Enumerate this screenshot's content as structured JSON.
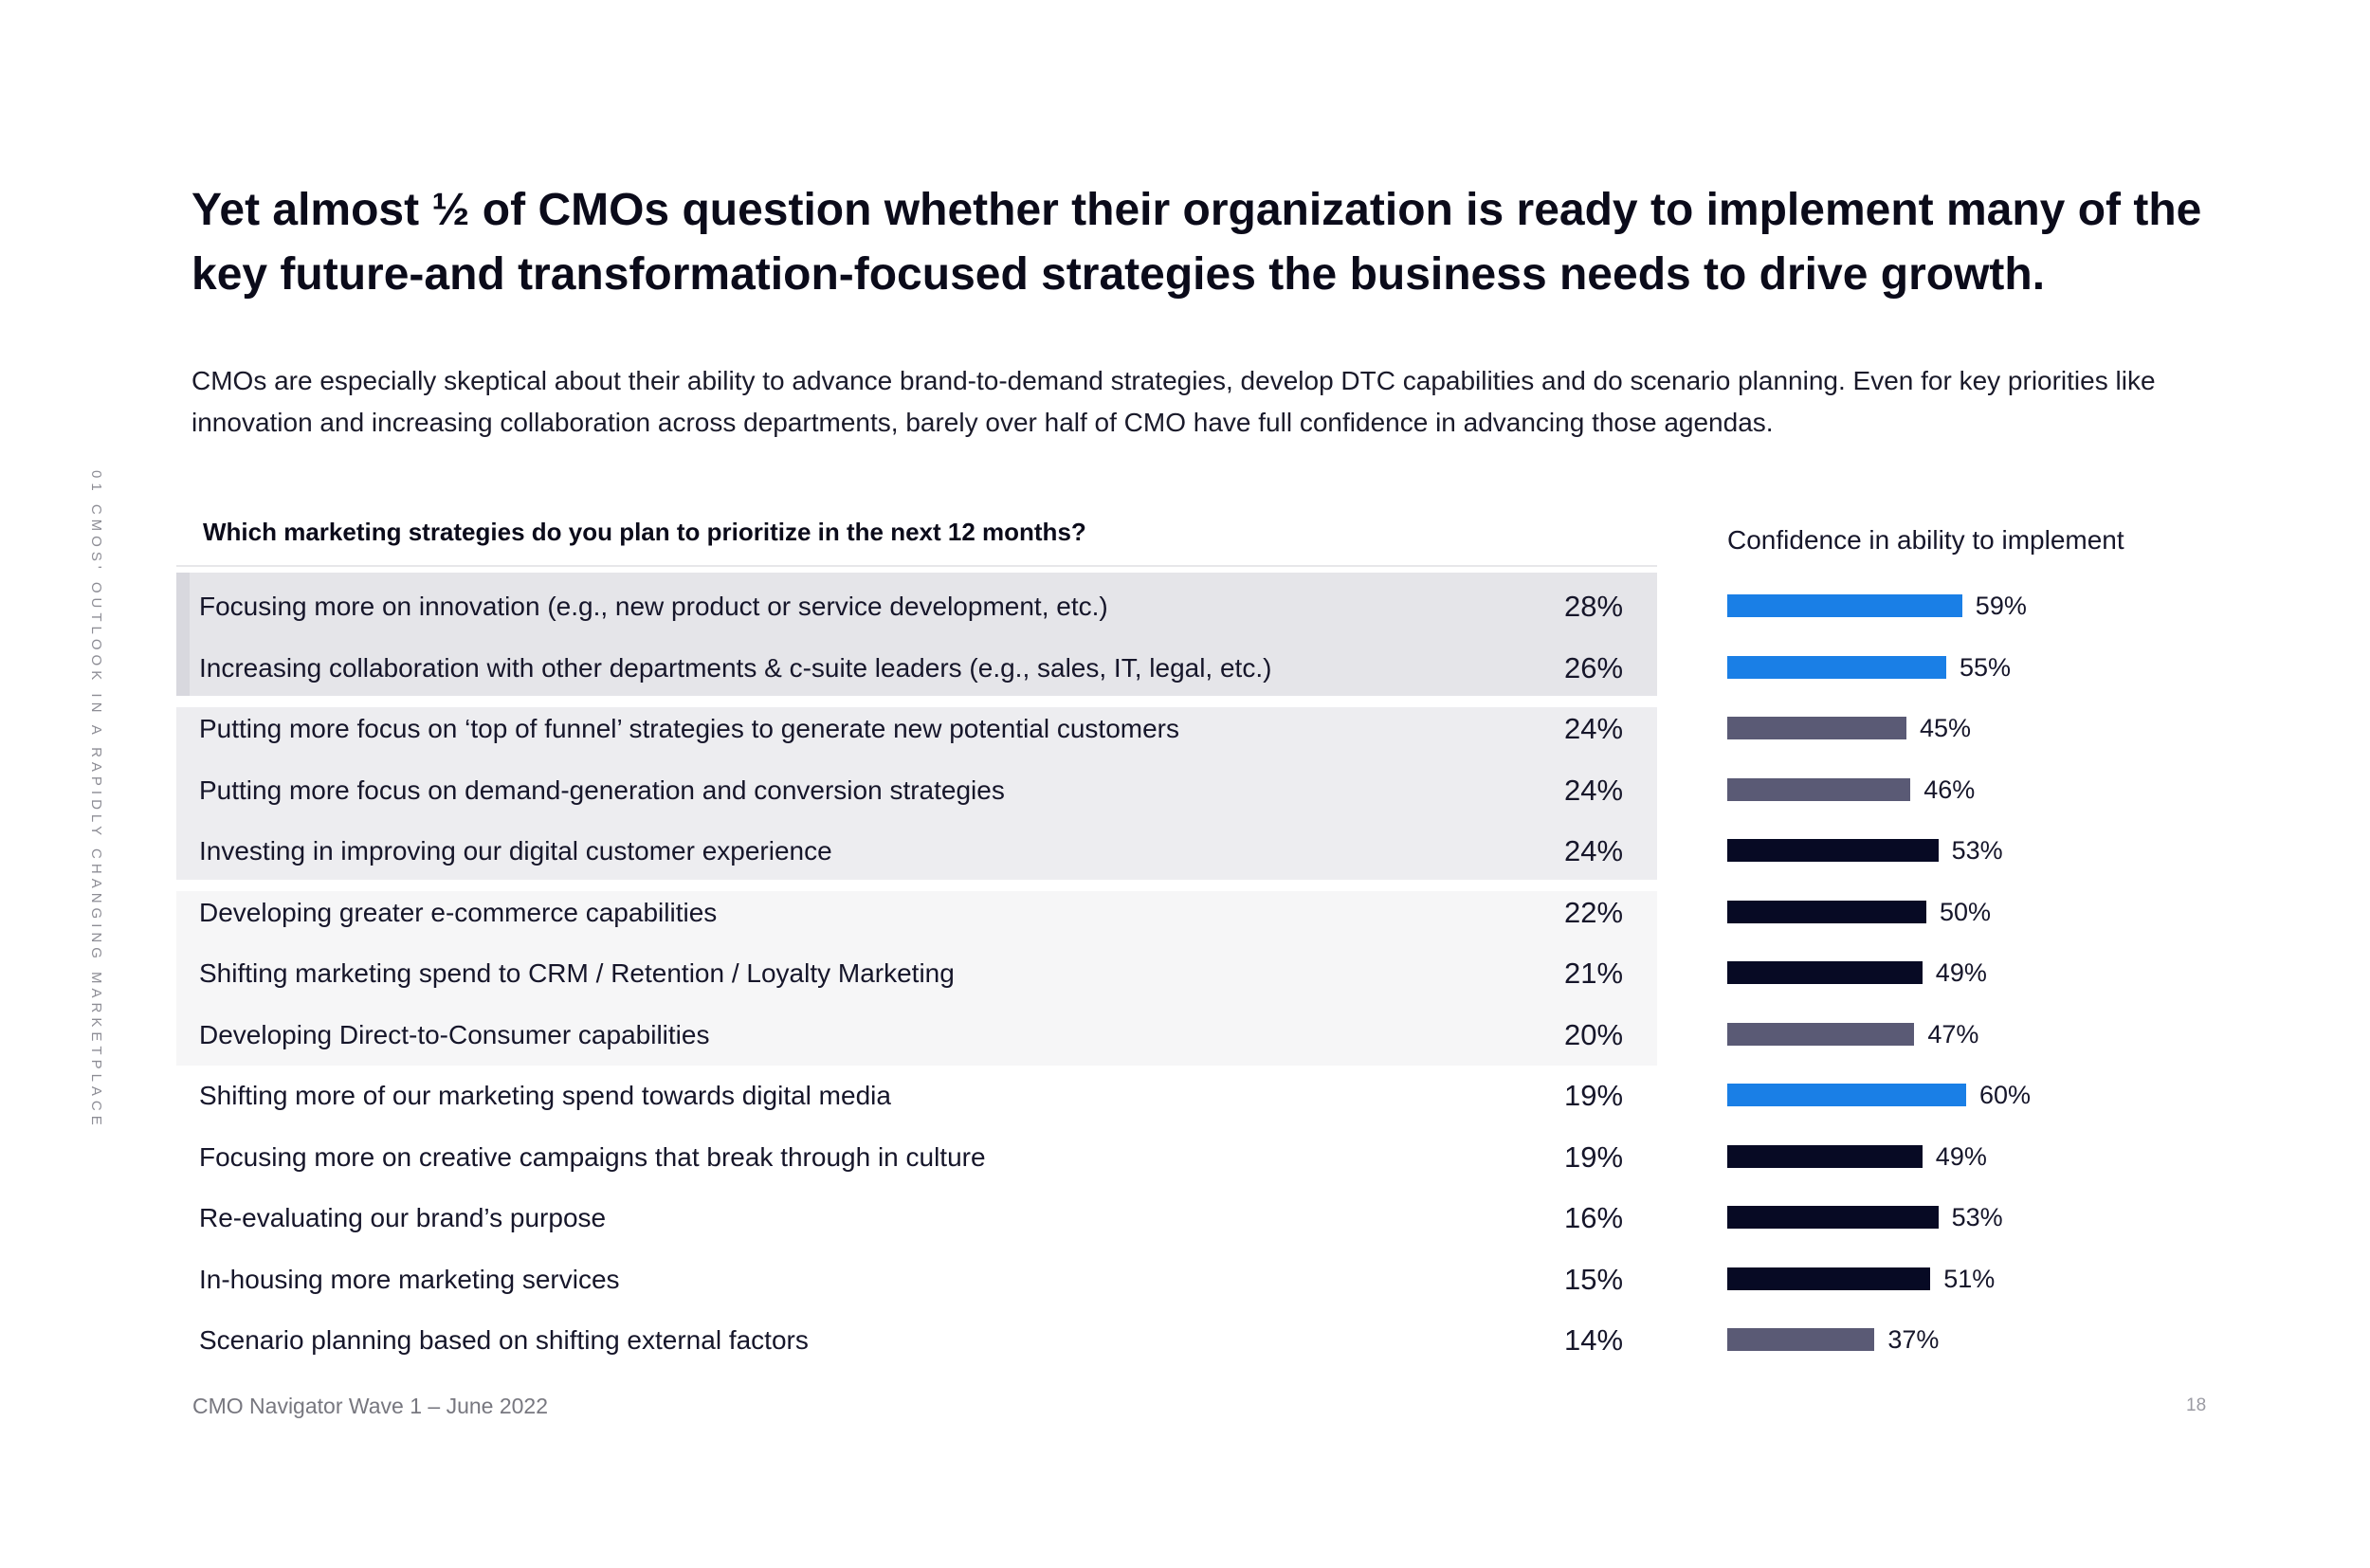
{
  "side_label": "01 CMOS' OUTLOOK IN A RAPIDLY CHANGING MARKETPLACE",
  "headline": "Yet almost ½ of CMOs question whether their organization is ready to implement many of the key future-and transformation-focused strategies the business needs to drive growth.",
  "subtitle": "CMOs are especially skeptical about their ability  to advance brand-to-demand strategies, develop DTC capabilities and do scenario planning. Even for key priorities like innovation and increasing collaboration across departments, barely over half of CMO have full confidence in advancing those agendas.",
  "footer": "CMO Navigator Wave 1 – June 2022",
  "page_number": "18",
  "colors": {
    "blue": "#1a7fe6",
    "slate": "#5a5a75",
    "navy": "#070a24"
  },
  "chart_data": {
    "type": "table",
    "title": "Which marketing strategies do you plan to prioritize in the next 12 months?",
    "confidence_title": "Confidence in ability to implement",
    "value_unit": "%",
    "rows": [
      {
        "label": "Focusing more on innovation (e.g., new product or service development, etc.)",
        "priority": "28%",
        "confidence": 59,
        "confidence_label": "59%",
        "bar_color": "blue"
      },
      {
        "label": "Increasing collaboration with other departments & c-suite leaders (e.g., sales, IT, legal, etc.)",
        "priority": "26%",
        "confidence": 55,
        "confidence_label": "55%",
        "bar_color": "blue"
      },
      {
        "label": "Putting more focus on ‘top of funnel’ strategies to generate new potential customers",
        "priority": "24%",
        "confidence": 45,
        "confidence_label": "45%",
        "bar_color": "slate"
      },
      {
        "label": "Putting more focus on demand-generation and conversion strategies",
        "priority": "24%",
        "confidence": 46,
        "confidence_label": "46%",
        "bar_color": "slate"
      },
      {
        "label": "Investing in improving our digital customer experience",
        "priority": "24%",
        "confidence": 53,
        "confidence_label": "53%",
        "bar_color": "navy"
      },
      {
        "label": "Developing greater e-commerce capabilities",
        "priority": "22%",
        "confidence": 50,
        "confidence_label": "50%",
        "bar_color": "navy"
      },
      {
        "label": "Shifting marketing spend to CRM / Retention / Loyalty Marketing",
        "priority": "21%",
        "confidence": 49,
        "confidence_label": "49%",
        "bar_color": "navy"
      },
      {
        "label": "Developing Direct-to-Consumer capabilities",
        "priority": "20%",
        "confidence": 47,
        "confidence_label": "47%",
        "bar_color": "slate"
      },
      {
        "label": "Shifting more of our marketing spend towards digital media",
        "priority": "19%",
        "confidence": 60,
        "confidence_label": "60%",
        "bar_color": "blue"
      },
      {
        "label": "Focusing more on creative campaigns that break through in culture",
        "priority": "19%",
        "confidence": 49,
        "confidence_label": "49%",
        "bar_color": "navy"
      },
      {
        "label": "Re-evaluating our brand’s purpose",
        "priority": "16%",
        "confidence": 53,
        "confidence_label": "53%",
        "bar_color": "navy"
      },
      {
        "label": "In-housing more marketing services",
        "priority": "15%",
        "confidence": 51,
        "confidence_label": "51%",
        "bar_color": "navy"
      },
      {
        "label": "Scenario planning based on shifting external factors",
        "priority": "14%",
        "confidence": 37,
        "confidence_label": "37%",
        "bar_color": "slate"
      }
    ]
  }
}
